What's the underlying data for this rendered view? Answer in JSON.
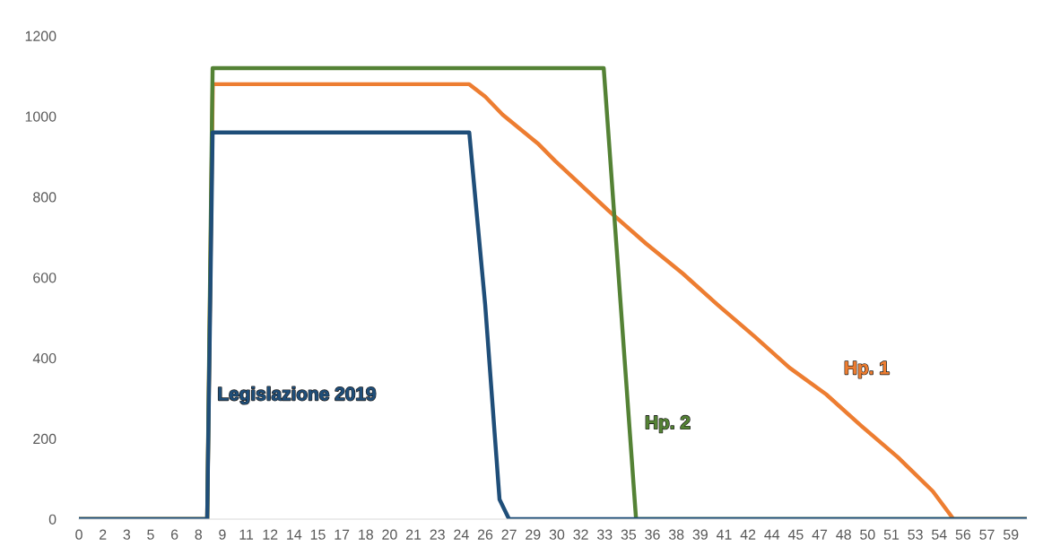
{
  "chart_data": {
    "type": "line",
    "xlim": [
      0,
      59.5
    ],
    "ylim": [
      0,
      1200
    ],
    "yticks": [
      0,
      200,
      400,
      600,
      800,
      1000,
      1200
    ],
    "xticks": [
      0,
      {
        "value": 1.5,
        "label": "2"
      },
      3,
      {
        "value": 4.5,
        "label": "5"
      },
      6,
      {
        "value": 7.5,
        "label": "8"
      },
      9,
      {
        "value": 10.5,
        "label": "11"
      },
      12,
      {
        "value": 13.5,
        "label": "14"
      },
      15,
      {
        "value": 16.5,
        "label": "17"
      },
      18,
      {
        "value": 19.5,
        "label": "20"
      },
      21,
      {
        "value": 22.5,
        "label": "23"
      },
      24,
      {
        "value": 25.5,
        "label": "26"
      },
      27,
      {
        "value": 28.5,
        "label": "29"
      },
      30,
      {
        "value": 31.5,
        "label": "32"
      },
      33,
      {
        "value": 34.5,
        "label": "35"
      },
      36,
      {
        "value": 37.5,
        "label": "38"
      },
      39,
      {
        "value": 40.5,
        "label": "41"
      },
      42,
      {
        "value": 43.5,
        "label": "44"
      },
      45,
      {
        "value": 46.5,
        "label": "47"
      },
      48,
      {
        "value": 49.5,
        "label": "50"
      },
      51,
      {
        "value": 52.5,
        "label": "53"
      },
      54,
      {
        "value": 55.5,
        "label": "56"
      },
      57,
      {
        "value": 58.5,
        "label": "59"
      }
    ],
    "grid": false,
    "marker": "none",
    "line_style": "solid",
    "series": [
      {
        "name": "Hp. 1",
        "color": "#ed7d31",
        "x": [
          0,
          8.05,
          8.4,
          24.5,
          25.5,
          26.6,
          28.8,
          29.9,
          33.3,
          35.6,
          37.9,
          40.1,
          42.4,
          44.6,
          46.9,
          49.1,
          51.4,
          53.6,
          54.9,
          59.5
        ],
        "values": [
          0,
          0,
          1080,
          1080,
          1049,
          1004,
          933,
          889,
          764,
          684,
          610,
          532,
          454,
          376,
          310,
          232,
          154,
          69,
          0,
          0
        ]
      },
      {
        "name": "Hp. 2",
        "color": "#548235",
        "x": [
          0,
          8.05,
          8.39,
          32.94,
          34.97,
          59.5
        ],
        "values": [
          0,
          0,
          1120,
          1120,
          0,
          0
        ]
      },
      {
        "name": "Legislazione 2019",
        "color": "#1f4e79",
        "x": [
          0,
          8.05,
          8.39,
          24.5,
          25.5,
          26.4,
          27.0,
          59.5
        ],
        "values": [
          0,
          0,
          960,
          960,
          532,
          49,
          0,
          0
        ]
      }
    ]
  }
}
